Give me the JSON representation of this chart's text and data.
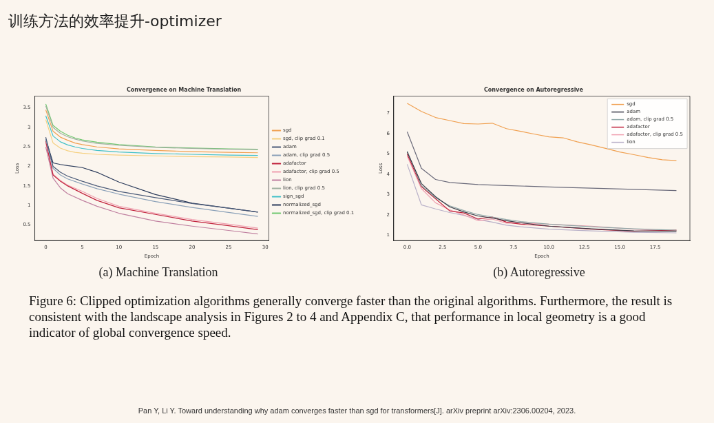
{
  "chart_data": [
    {
      "type": "line",
      "title": "Convergence on Machine Translation",
      "xlabel": "Epoch",
      "ylabel": "Loss",
      "xlim": [
        -1.5,
        30.5
      ],
      "ylim": [
        0.1,
        3.8
      ],
      "xticks": [
        0,
        5,
        10,
        15,
        20,
        25,
        30
      ],
      "yticks": [
        0.5,
        1.0,
        1.5,
        2.0,
        2.5,
        3.0,
        3.5
      ],
      "legend": "right",
      "marker": "none",
      "line_style": "solid",
      "annotations": [
        "训练方法的效率提升-optimizer",
        "(a) Machine Translation"
      ],
      "series": [
        {
          "name": "sgd",
          "color": "#f0a050",
          "x": [
            0,
            1,
            2,
            3,
            4,
            5,
            7,
            10,
            15,
            20,
            25,
            29
          ],
          "values": [
            3.45,
            2.9,
            2.75,
            2.67,
            2.6,
            2.56,
            2.5,
            2.45,
            2.41,
            2.38,
            2.36,
            2.35
          ]
        },
        {
          "name": "sgd, clip grad 0.1",
          "color": "#f5d080",
          "x": [
            0,
            1,
            2,
            3,
            4,
            5,
            7,
            10,
            15,
            20,
            25,
            29
          ],
          "values": [
            3.2,
            2.6,
            2.47,
            2.4,
            2.36,
            2.34,
            2.31,
            2.29,
            2.27,
            2.25,
            2.24,
            2.23
          ]
        },
        {
          "name": "adam",
          "color": "#4a5a78",
          "x": [
            0,
            1,
            2,
            3,
            5,
            7,
            10,
            15,
            20,
            25,
            29
          ],
          "values": [
            2.75,
            2.0,
            1.85,
            1.75,
            1.62,
            1.5,
            1.36,
            1.2,
            1.05,
            0.93,
            0.83
          ]
        },
        {
          "name": "adam, clip grad 0.5",
          "color": "#8aa0b8",
          "x": [
            0,
            1,
            2,
            3,
            5,
            7,
            10,
            15,
            20,
            25,
            29
          ],
          "values": [
            2.7,
            1.95,
            1.78,
            1.68,
            1.55,
            1.43,
            1.29,
            1.1,
            0.95,
            0.82,
            0.72
          ]
        },
        {
          "name": "adafactor",
          "color": "#c0203a",
          "x": [
            0,
            1,
            2,
            3,
            5,
            7,
            10,
            15,
            20,
            25,
            29
          ],
          "values": [
            2.65,
            1.78,
            1.62,
            1.5,
            1.31,
            1.13,
            0.94,
            0.77,
            0.6,
            0.48,
            0.38
          ]
        },
        {
          "name": "adafactor, clip grad 0.5",
          "color": "#f0a0b0",
          "x": [
            0,
            1,
            2,
            3,
            5,
            7,
            10,
            15,
            20,
            25,
            29
          ],
          "values": [
            2.6,
            1.8,
            1.64,
            1.52,
            1.36,
            1.18,
            0.98,
            0.8,
            0.64,
            0.52,
            0.42
          ]
        },
        {
          "name": "lion",
          "color": "#c080a0",
          "x": [
            0,
            1,
            2,
            3,
            5,
            7,
            10,
            15,
            20,
            25,
            29
          ],
          "values": [
            2.5,
            1.7,
            1.45,
            1.3,
            1.13,
            0.98,
            0.8,
            0.6,
            0.47,
            0.36,
            0.27
          ]
        },
        {
          "name": "lion, clip grad 0.5",
          "color": "#a0b0a0",
          "x": [
            0,
            1,
            2,
            3,
            4,
            5,
            7,
            10,
            15,
            20,
            25,
            29
          ],
          "values": [
            3.55,
            3.0,
            2.85,
            2.76,
            2.7,
            2.65,
            2.59,
            2.54,
            2.49,
            2.46,
            2.44,
            2.43
          ]
        },
        {
          "name": "sign_sgd",
          "color": "#40c0c8",
          "x": [
            0,
            1,
            2,
            3,
            4,
            5,
            7,
            10,
            15,
            20,
            25,
            29
          ],
          "values": [
            3.3,
            2.78,
            2.63,
            2.55,
            2.5,
            2.46,
            2.41,
            2.37,
            2.33,
            2.31,
            2.29,
            2.28
          ]
        },
        {
          "name": "normalized_sgd",
          "color": "#2a3a5a",
          "x": [
            0,
            1,
            2,
            3,
            5,
            7,
            10,
            15,
            20,
            25,
            29
          ],
          "values": [
            2.7,
            2.09,
            2.05,
            2.02,
            1.97,
            1.85,
            1.6,
            1.28,
            1.06,
            0.93,
            0.83
          ]
        },
        {
          "name": "normalized_sgd, clip grad 0.1",
          "color": "#70c870",
          "x": [
            0,
            1,
            2,
            3,
            4,
            5,
            7,
            10,
            15,
            20,
            25,
            29
          ],
          "values": [
            3.6,
            3.05,
            2.9,
            2.8,
            2.73,
            2.68,
            2.62,
            2.56,
            2.5,
            2.47,
            2.45,
            2.44
          ]
        }
      ]
    },
    {
      "type": "line",
      "title": "Convergence on Autoregressive",
      "xlabel": "Epoch",
      "ylabel": "Loss",
      "xlim": [
        -0.95,
        19.95
      ],
      "ylim": [
        0.74,
        7.85
      ],
      "xticks": [
        {
          "value": 0,
          "label": "0.0"
        },
        {
          "value": 2.5,
          "label": "2.5"
        },
        {
          "value": 5,
          "label": "5.0"
        },
        {
          "value": 7.5,
          "label": "7.5"
        },
        {
          "value": 10,
          "label": "10.0"
        },
        {
          "value": 12.5,
          "label": "12.5"
        },
        {
          "value": 15,
          "label": "15.0"
        },
        {
          "value": 17.5,
          "label": "17.5"
        }
      ],
      "yticks": [
        1,
        2,
        3,
        4,
        5,
        6,
        7
      ],
      "legend": "top right",
      "marker": "none",
      "line_style": "solid",
      "annotations": [
        "(b) Autoregressive",
        "Figure 6: Clipped optimization algorithms generally converge faster than the original algorithms. Furthermore, the result is consistent with the landscape analysis in Figures 2 to 4 and Appendix C, that performance in local geometry is a good indicator of global convergence speed.",
        "Pan Y, Li Y. Toward understanding why adam converges faster than sgd for transformers[J]. arXiv preprint arXiv:2306.00204, 2023."
      ],
      "series": [
        {
          "name": "sgd",
          "color": "#f0a050",
          "x": [
            0,
            1,
            2,
            3,
            4,
            5,
            6,
            7,
            8,
            9,
            10,
            11,
            12,
            13,
            14,
            15,
            16,
            17,
            18,
            19
          ],
          "values": [
            7.5,
            7.1,
            6.8,
            6.65,
            6.5,
            6.48,
            6.52,
            6.25,
            6.12,
            5.98,
            5.85,
            5.8,
            5.6,
            5.45,
            5.28,
            5.1,
            4.97,
            4.83,
            4.72,
            4.68
          ]
        },
        {
          "name": "adam",
          "color": "#3a3a48",
          "x": [
            0,
            1,
            2,
            3,
            4,
            5,
            6,
            7,
            8,
            10,
            13,
            16,
            19
          ],
          "values": [
            5.1,
            3.55,
            2.9,
            2.4,
            2.15,
            1.95,
            1.85,
            1.72,
            1.62,
            1.45,
            1.32,
            1.22,
            1.2
          ]
        },
        {
          "name": "adam, clip grad 0.5",
          "color": "#90a8a8",
          "x": [
            0,
            1,
            2,
            3,
            4,
            5,
            6,
            7,
            8,
            10,
            13,
            16,
            19
          ],
          "values": [
            5.15,
            3.45,
            2.85,
            2.45,
            2.22,
            2.02,
            1.9,
            1.78,
            1.68,
            1.55,
            1.42,
            1.32,
            1.25
          ]
        },
        {
          "name": "adafactor",
          "color": "#c0203a",
          "x": [
            0,
            1,
            2,
            3,
            4,
            5,
            6,
            7,
            8,
            10,
            13,
            16,
            19
          ],
          "values": [
            5.0,
            3.4,
            2.8,
            2.2,
            2.1,
            1.8,
            1.9,
            1.65,
            1.55,
            1.45,
            1.3,
            1.2,
            1.25
          ]
        },
        {
          "name": "adafactor, clip grad 0.5",
          "color": "#f0a0b0",
          "x": [
            0,
            1,
            2,
            3,
            4,
            5,
            6,
            7,
            8,
            10,
            13,
            16,
            19
          ],
          "values": [
            4.9,
            3.3,
            2.6,
            2.25,
            2.0,
            1.72,
            1.8,
            1.6,
            1.6,
            1.55,
            1.45,
            1.3,
            1.22
          ]
        },
        {
          "name": "lion",
          "color": "#b8b0c8",
          "x": [
            0,
            1,
            2,
            3,
            4,
            5,
            6,
            7,
            8,
            10,
            13,
            16,
            19
          ],
          "values": [
            4.5,
            2.5,
            2.3,
            2.12,
            1.98,
            1.78,
            1.65,
            1.5,
            1.42,
            1.3,
            1.22,
            1.15,
            1.12
          ]
        },
        {
          "color": "#6a6a7a",
          "x": [
            0,
            1,
            2,
            3,
            4,
            5,
            7,
            10,
            13,
            16,
            19
          ],
          "values": [
            6.1,
            4.3,
            3.75,
            3.6,
            3.55,
            3.5,
            3.45,
            3.38,
            3.32,
            3.26,
            3.2
          ]
        }
      ]
    }
  ]
}
